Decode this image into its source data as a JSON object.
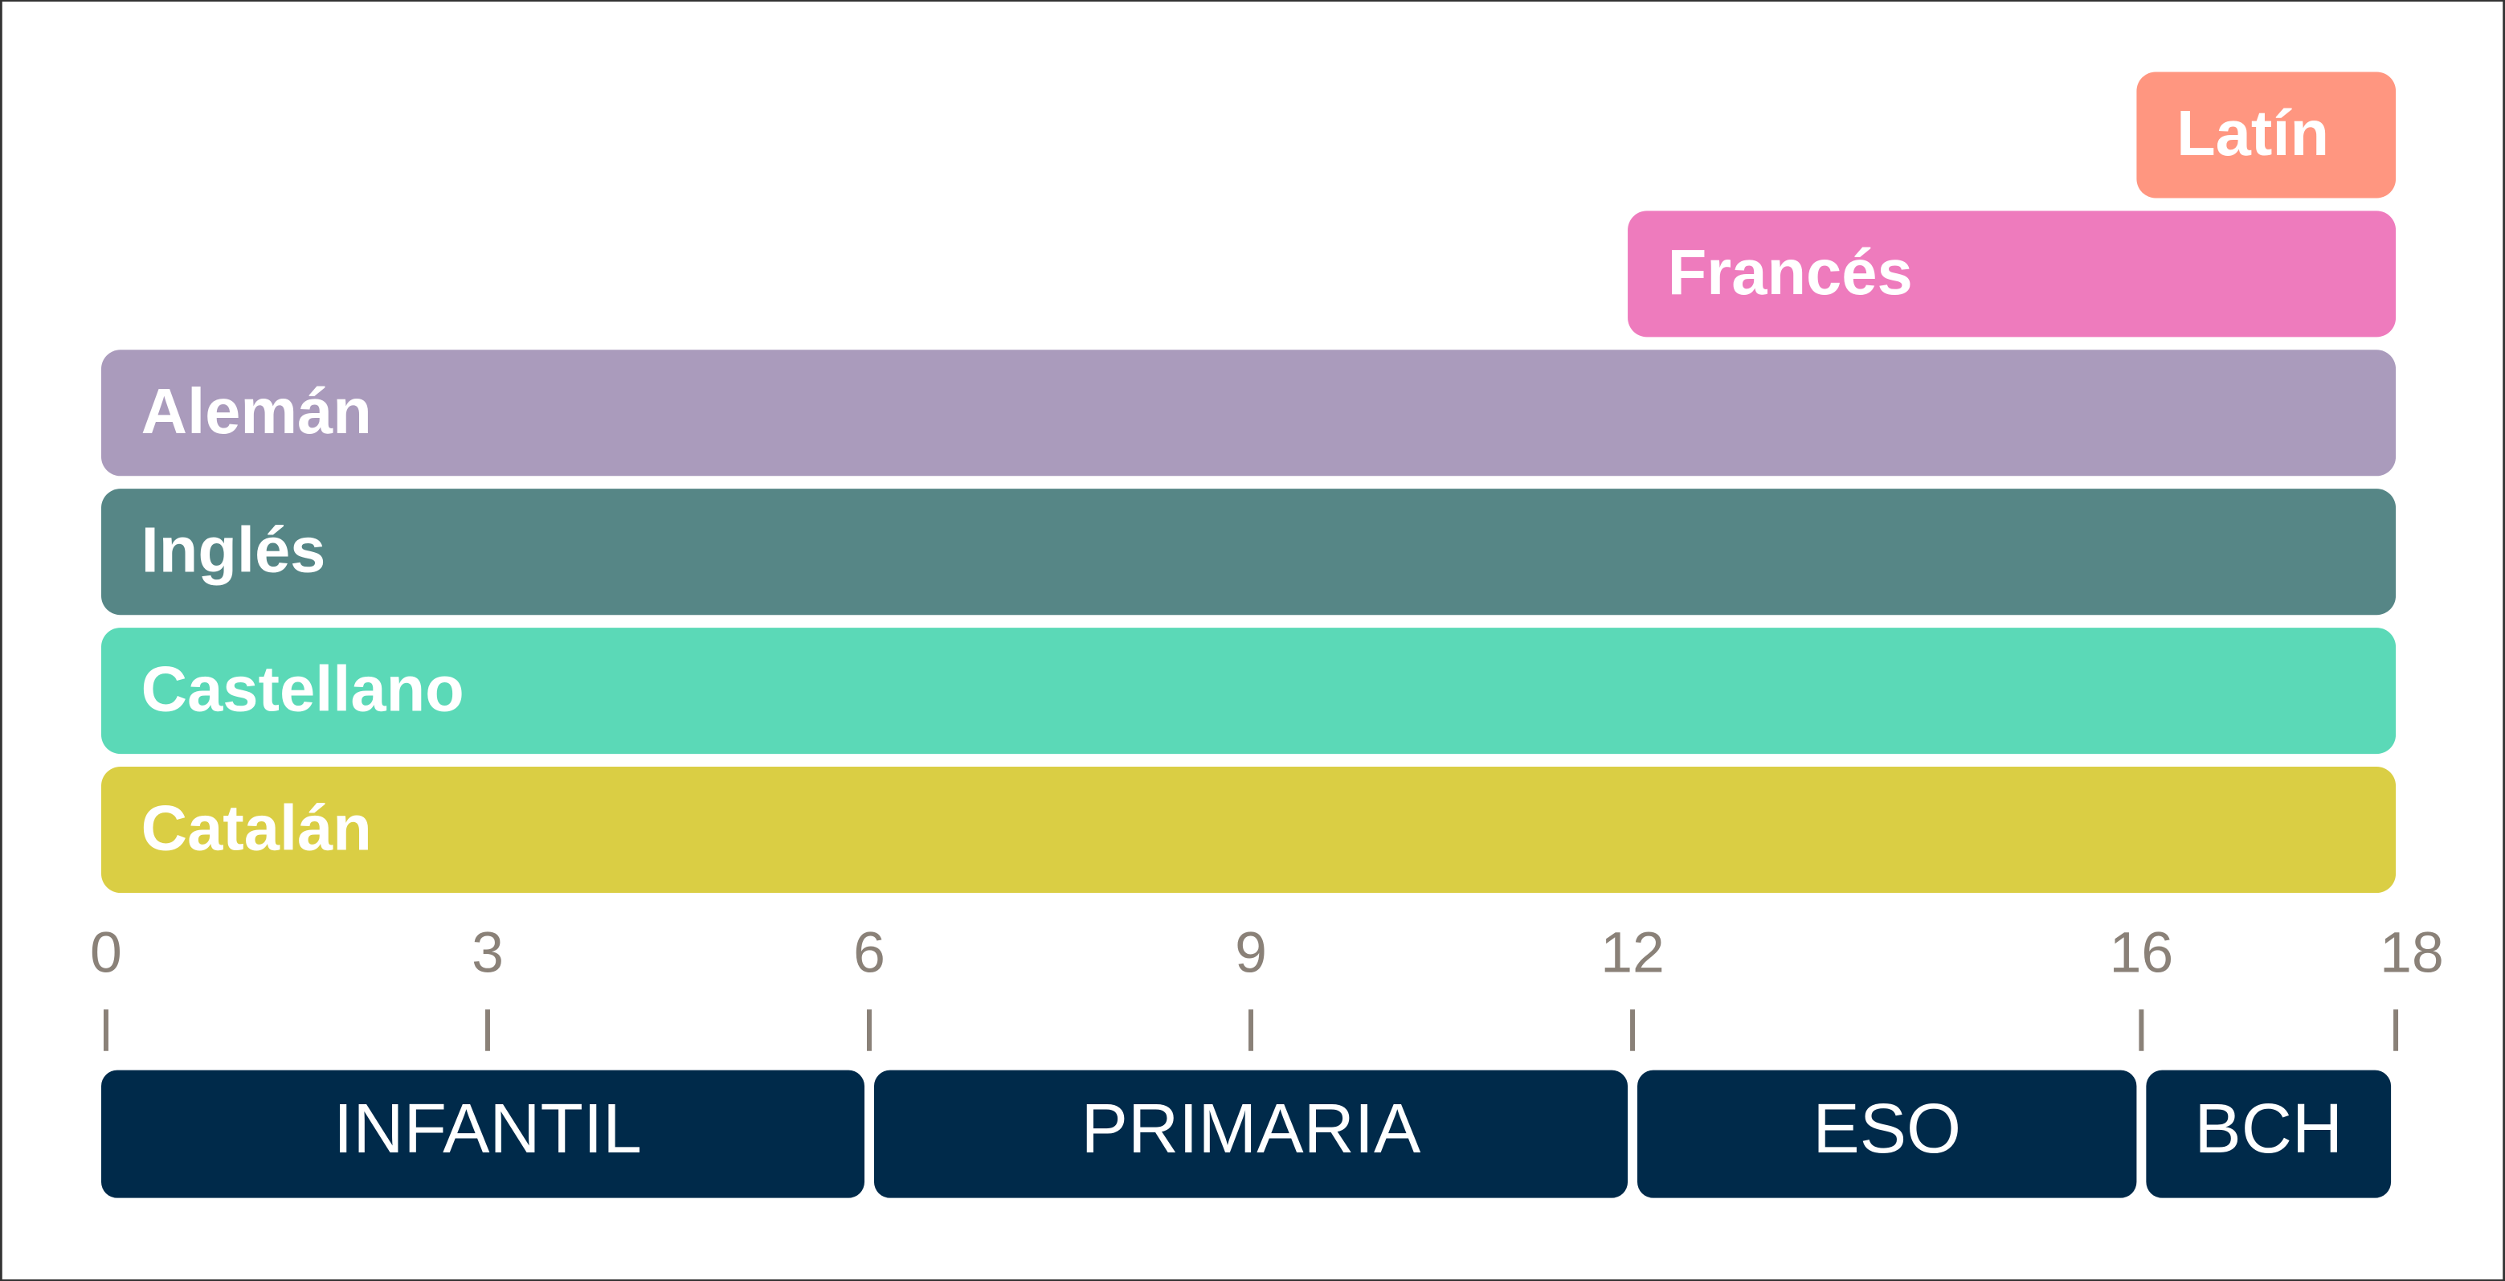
{
  "chart_data": {
    "type": "timeline",
    "xlim": [
      0,
      18
    ],
    "xticks": [
      0,
      3,
      6,
      9,
      12,
      16,
      18
    ],
    "languages": [
      {
        "name": "Latín",
        "start": 16,
        "end": 18,
        "color": "#ff9680"
      },
      {
        "name": "Francés",
        "start": 12,
        "end": 18,
        "color": "#ee7bbd"
      },
      {
        "name": "Alemán",
        "start": 0,
        "end": 18,
        "color": "#aa9bbc"
      },
      {
        "name": "Inglés",
        "start": 0,
        "end": 18,
        "color": "#568686"
      },
      {
        "name": "Castellano",
        "start": 0,
        "end": 18,
        "color": "#5bd9b7"
      },
      {
        "name": "Catalán",
        "start": 0,
        "end": 18,
        "color": "#dace44"
      }
    ],
    "stages": [
      {
        "name": "INFANTIL",
        "start": 0,
        "end": 6
      },
      {
        "name": "PRIMARIA",
        "start": 6,
        "end": 12
      },
      {
        "name": "ESO",
        "start": 12,
        "end": 16
      },
      {
        "name": "BCH",
        "start": 16,
        "end": 18
      }
    ],
    "stage_color": "#002a4a"
  }
}
